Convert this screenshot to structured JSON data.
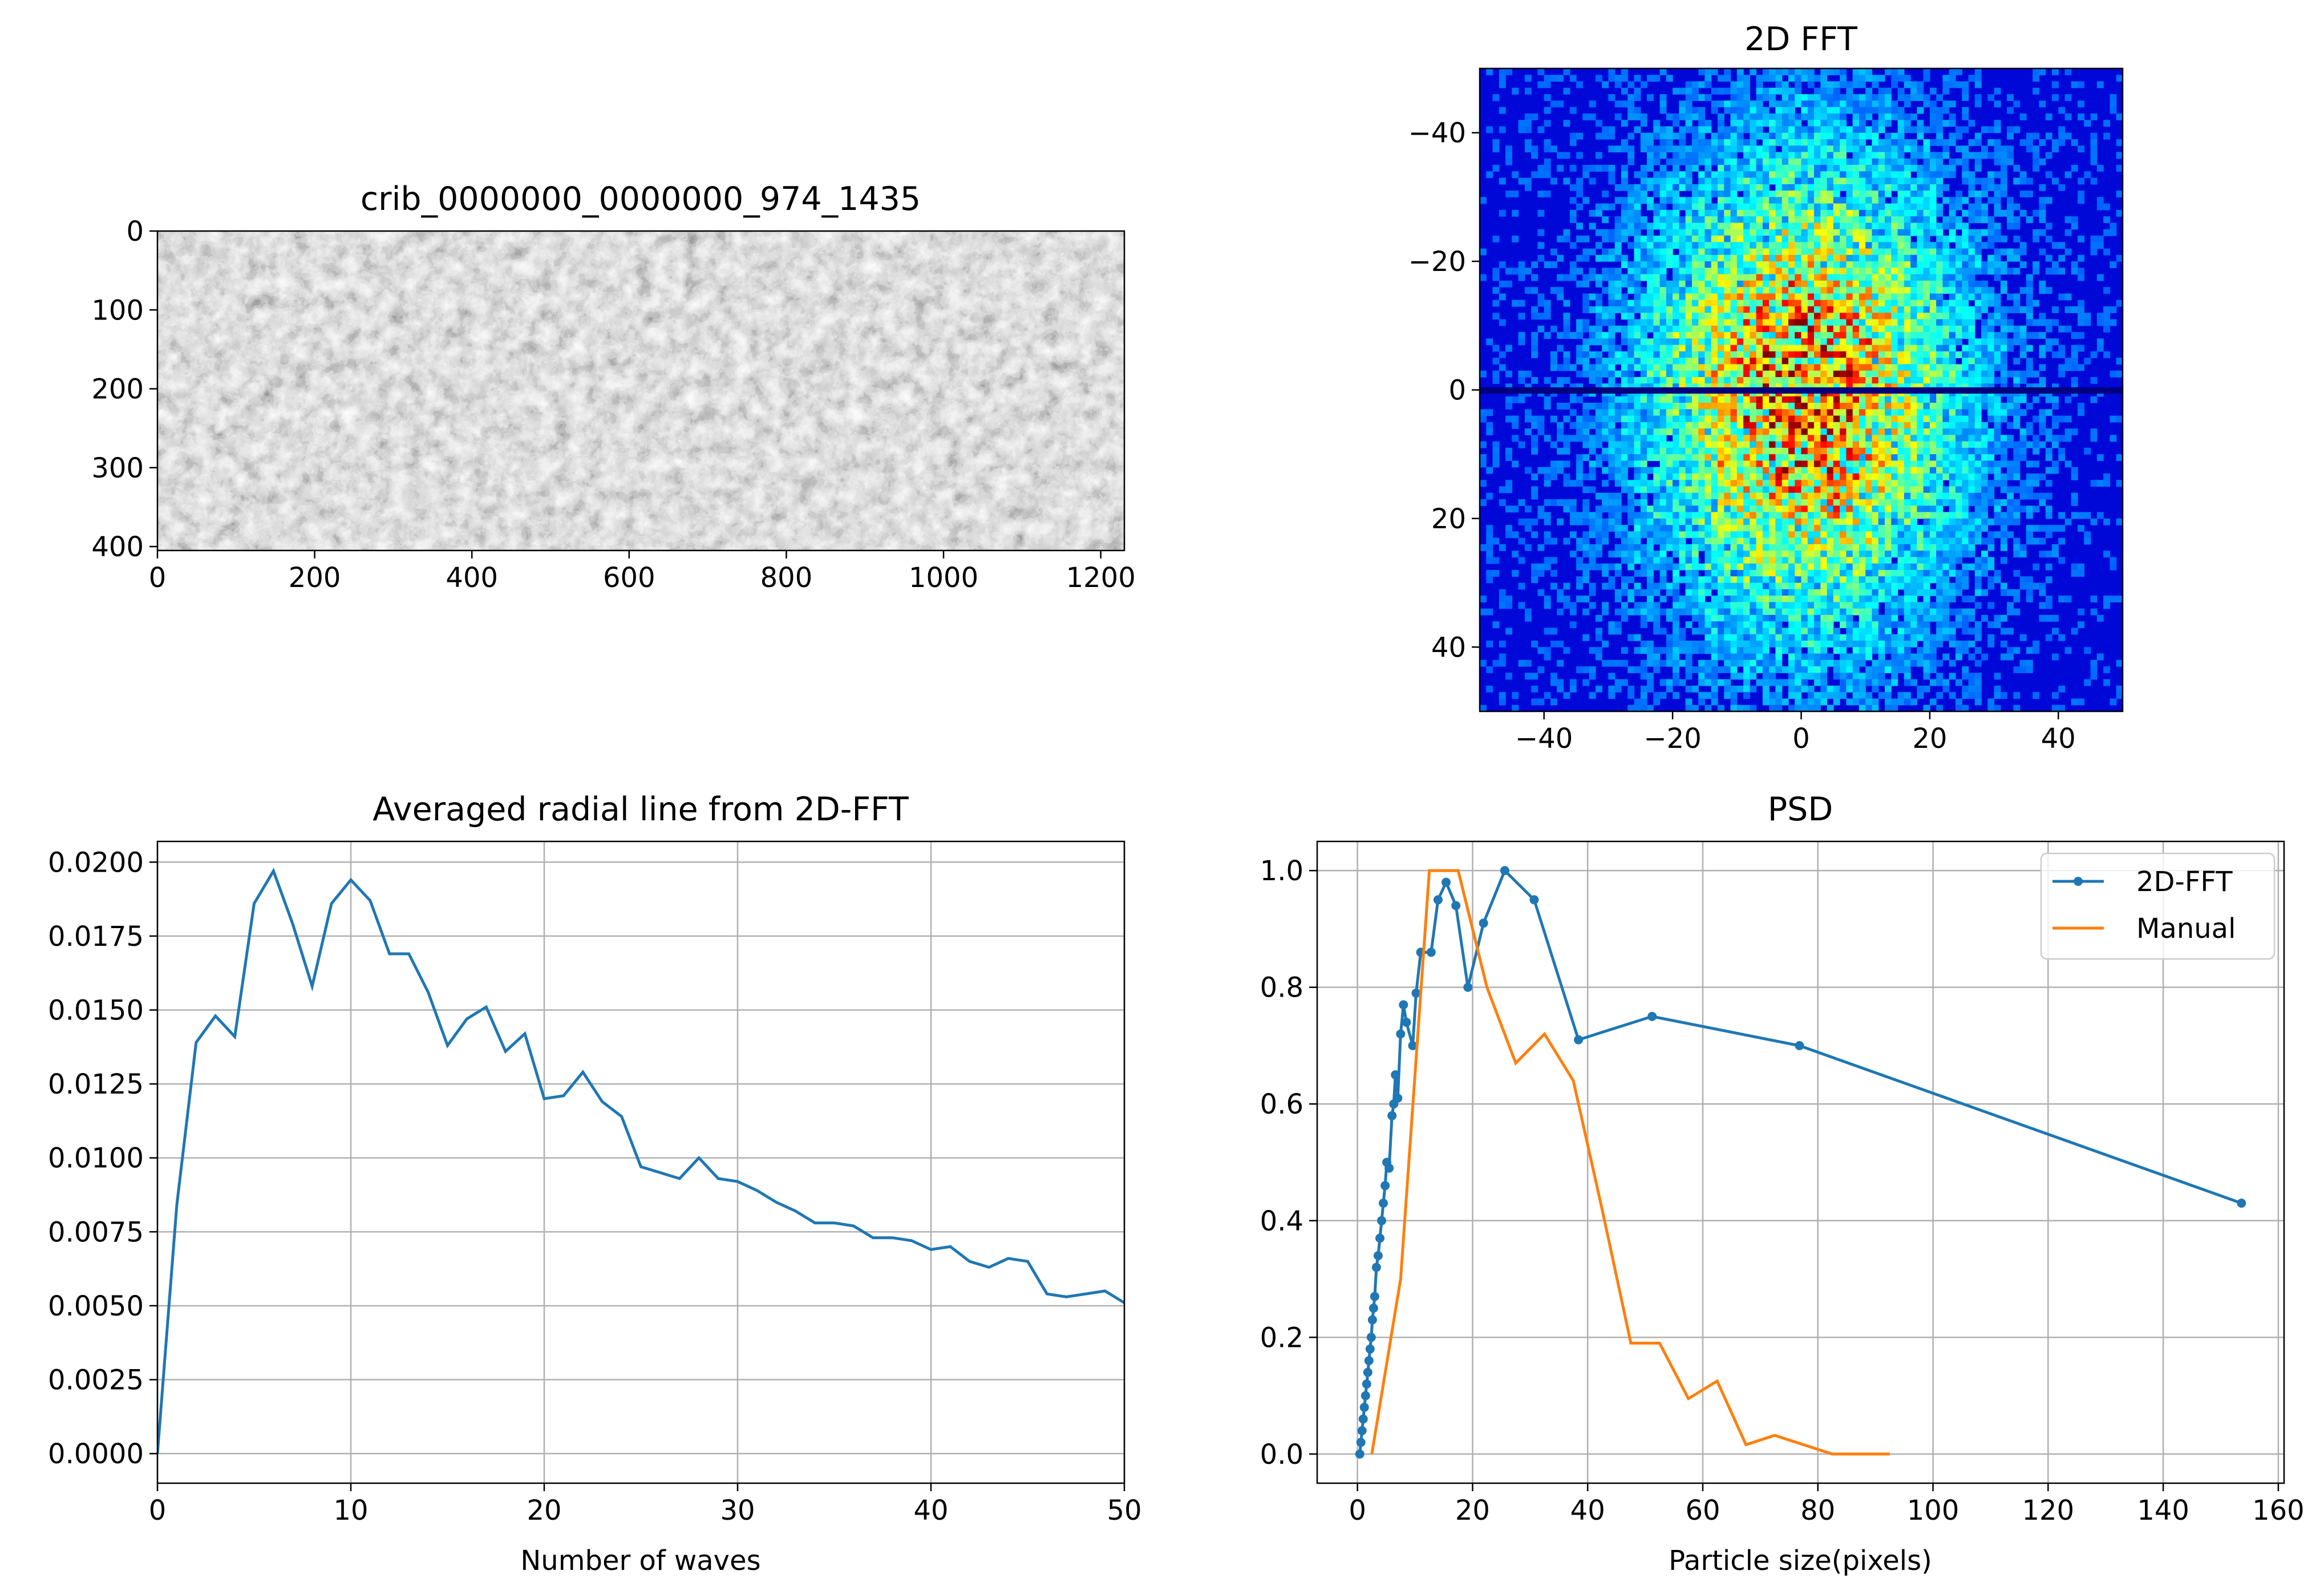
{
  "colors": {
    "series_blue": "#1f77b4",
    "series_orange": "#ff7f0e",
    "grid": "#b0b0b0",
    "legend_edge": "#cccccc"
  },
  "chart_data": [
    {
      "type": "image",
      "title": "crib_0000000_0000000_974_1435",
      "xticks": [
        0,
        200,
        400,
        600,
        800,
        1000,
        1200
      ],
      "yticks": [
        0,
        100,
        200,
        300,
        400
      ],
      "xlim": [
        0,
        1230
      ],
      "ylim": [
        405,
        0
      ],
      "colormap": "gray"
    },
    {
      "type": "heatmap",
      "title": "2D FFT",
      "xticks": [
        -40,
        -20,
        0,
        20,
        40
      ],
      "yticks": [
        -40,
        -20,
        0,
        20,
        40
      ],
      "xlim": [
        -50,
        50
      ],
      "ylim": [
        50,
        -50
      ],
      "colormap": "jet"
    },
    {
      "type": "line",
      "title": "Averaged radial line from 2D-FFT",
      "xlabel": "Number of waves",
      "ylabel": "",
      "xlim": [
        0,
        50
      ],
      "ylim": [
        -0.001,
        0.0207
      ],
      "grid": true,
      "xticks": [
        "0",
        "10",
        "20",
        "30",
        "40",
        "50"
      ],
      "yticks": [
        "0.0000",
        "0.0025",
        "0.0050",
        "0.0075",
        "0.0100",
        "0.0125",
        "0.0150",
        "0.0175",
        "0.0200"
      ],
      "series": [
        {
          "x": [
            0,
            1,
            2,
            3,
            4,
            5,
            6,
            7,
            8,
            9,
            10,
            11,
            12,
            13,
            14,
            15,
            16,
            17,
            18,
            19,
            20,
            21,
            22,
            23,
            24,
            25,
            26,
            27,
            28,
            29,
            30,
            31,
            32,
            33,
            34,
            35,
            36,
            37,
            38,
            39,
            40,
            41,
            42,
            43,
            44,
            45,
            46,
            47,
            48,
            49,
            50
          ],
          "values": [
            0.0,
            0.0084,
            0.0139,
            0.0148,
            0.0141,
            0.0186,
            0.0197,
            0.0179,
            0.0158,
            0.0186,
            0.0194,
            0.0187,
            0.0169,
            0.0169,
            0.0156,
            0.0138,
            0.0147,
            0.0151,
            0.0136,
            0.0142,
            0.012,
            0.0121,
            0.0129,
            0.0119,
            0.0114,
            0.0097,
            0.0095,
            0.0093,
            0.01,
            0.0093,
            0.0092,
            0.0089,
            0.0085,
            0.0082,
            0.0078,
            0.0078,
            0.0077,
            0.0073,
            0.0073,
            0.0072,
            0.0069,
            0.007,
            0.0065,
            0.0063,
            0.0066,
            0.0065,
            0.0054,
            0.0053,
            0.0054,
            0.0055,
            0.0051
          ]
        }
      ]
    },
    {
      "type": "line",
      "title": "PSD",
      "xlabel": "Particle size(pixels)",
      "ylabel": "",
      "xlim": [
        -7,
        161
      ],
      "ylim": [
        -0.05,
        1.05
      ],
      "grid": true,
      "legend": "top-right",
      "xticks": [
        "0",
        "20",
        "40",
        "60",
        "80",
        "100",
        "120",
        "140",
        "160"
      ],
      "yticks": [
        "0.0",
        "0.2",
        "0.4",
        "0.6",
        "0.8",
        "1.0"
      ],
      "series": [
        {
          "name": "2D-FFT",
          "marker": "dot",
          "x": [
            0.4,
            0.6,
            0.8,
            1.0,
            1.2,
            1.4,
            1.6,
            1.8,
            2.0,
            2.2,
            2.4,
            2.6,
            2.8,
            3.0,
            3.3,
            3.6,
            3.9,
            4.2,
            4.5,
            4.8,
            5.1,
            5.5,
            6.0,
            6.3,
            6.6,
            7.0,
            7.5,
            8.0,
            8.5,
            9.6,
            10.2,
            11.0,
            12.8,
            14.0,
            15.4,
            17.1,
            19.2,
            21.9,
            25.6,
            30.7,
            38.4,
            51.2,
            76.8,
            153.6
          ],
          "values": [
            0.0,
            0.02,
            0.04,
            0.06,
            0.08,
            0.1,
            0.12,
            0.14,
            0.16,
            0.18,
            0.2,
            0.23,
            0.25,
            0.27,
            0.32,
            0.34,
            0.37,
            0.4,
            0.43,
            0.46,
            0.5,
            0.49,
            0.58,
            0.6,
            0.65,
            0.61,
            0.72,
            0.77,
            0.74,
            0.7,
            0.79,
            0.86,
            0.86,
            0.95,
            0.98,
            0.94,
            0.8,
            0.91,
            1.0,
            0.95,
            0.71,
            0.75,
            0.7,
            0.43
          ]
        },
        {
          "name": "Manual",
          "marker": "none",
          "x": [
            2.5,
            7.5,
            12.5,
            17.5,
            22.5,
            27.5,
            32.5,
            37.5,
            42.5,
            47.5,
            52.5,
            57.5,
            62.5,
            67.5,
            72.5,
            77.5,
            82.5,
            87.5,
            92.5
          ],
          "values": [
            0.0,
            0.3,
            1.0,
            1.0,
            0.8,
            0.67,
            0.72,
            0.64,
            0.42,
            0.19,
            0.19,
            0.095,
            0.125,
            0.016,
            0.032,
            0.016,
            0.0,
            0.0,
            0.0
          ]
        }
      ]
    }
  ]
}
